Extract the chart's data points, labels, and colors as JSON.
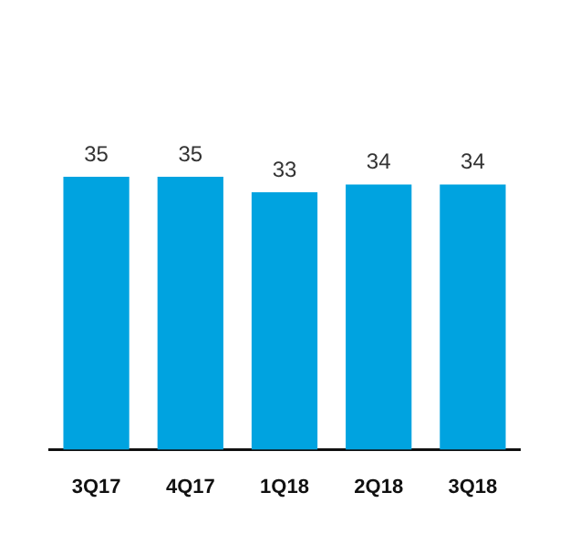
{
  "chart_data": {
    "type": "bar",
    "categories": [
      "3Q17",
      "4Q17",
      "1Q18",
      "2Q18",
      "3Q18"
    ],
    "values": [
      35,
      35,
      33,
      34,
      34
    ],
    "color": "#00a3e0",
    "data_labels": true,
    "grid": false,
    "legend": false
  }
}
